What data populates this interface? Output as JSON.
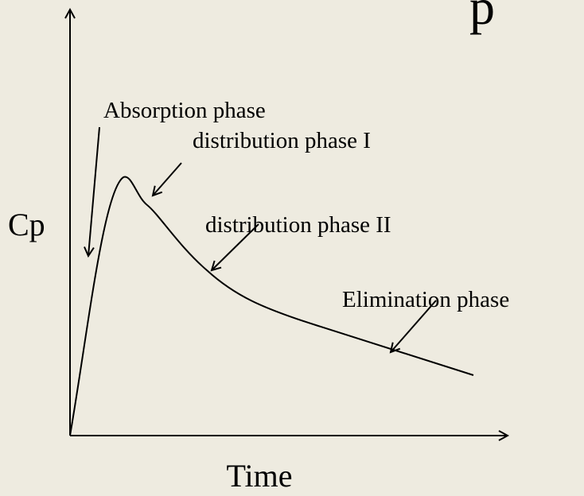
{
  "title_fragment": "p",
  "axes": {
    "y_label": "Cp",
    "x_label": "Time"
  },
  "labels": [
    "Absorption phase",
    "distribution phase I",
    "distribution phase II",
    "Elimination phase"
  ]
}
